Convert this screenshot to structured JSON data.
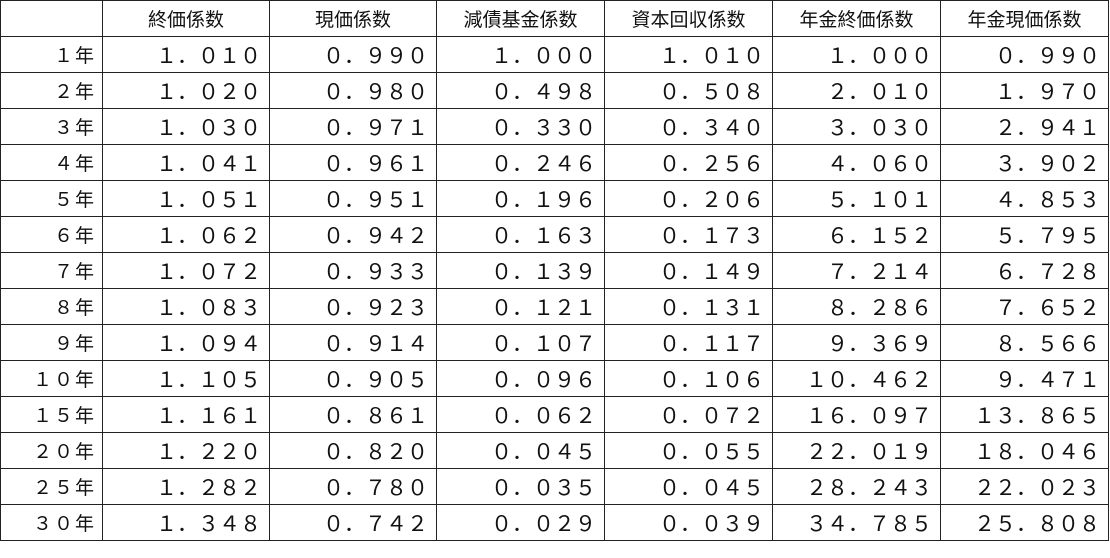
{
  "table": {
    "headers": [
      "",
      "終価係数",
      "現価係数",
      "減債基金係数",
      "資本回収係数",
      "年金終価係数",
      "年金現価係数"
    ],
    "rows": [
      {
        "label": "１年",
        "values": [
          "１．０１０",
          "０．９９０",
          "１．０００",
          "１．０１０",
          "１．０００",
          "０．９９０"
        ]
      },
      {
        "label": "２年",
        "values": [
          "１．０２０",
          "０．９８０",
          "０．４９８",
          "０．５０８",
          "２．０１０",
          "１．９７０"
        ]
      },
      {
        "label": "３年",
        "values": [
          "１．０３０",
          "０．９７１",
          "０．３３０",
          "０．３４０",
          "３．０３０",
          "２．９４１"
        ]
      },
      {
        "label": "４年",
        "values": [
          "１．０４１",
          "０．９６１",
          "０．２４６",
          "０．２５６",
          "４．０６０",
          "３．９０２"
        ]
      },
      {
        "label": "５年",
        "values": [
          "１．０５１",
          "０．９５１",
          "０．１９６",
          "０．２０６",
          "５．１０１",
          "４．８５３"
        ]
      },
      {
        "label": "６年",
        "values": [
          "１．０６２",
          "０．９４２",
          "０．１６３",
          "０．１７３",
          "６．１５２",
          "５．７９５"
        ]
      },
      {
        "label": "７年",
        "values": [
          "１．０７２",
          "０．９３３",
          "０．１３９",
          "０．１４９",
          "７．２１４",
          "６．７２８"
        ]
      },
      {
        "label": "８年",
        "values": [
          "１．０８３",
          "０．９２３",
          "０．１２１",
          "０．１３１",
          "８．２８６",
          "７．６５２"
        ]
      },
      {
        "label": "９年",
        "values": [
          "１．０９４",
          "０．９１４",
          "０．１０７",
          "０．１１７",
          "９．３６９",
          "８．５６６"
        ]
      },
      {
        "label": "１０年",
        "values": [
          "１．１０５",
          "０．９０５",
          "０．０９６",
          "０．１０６",
          "１０．４６２",
          "９．４７１"
        ]
      },
      {
        "label": "１５年",
        "values": [
          "１．１６１",
          "０．８６１",
          "０．０６２",
          "０．０７２",
          "１６．０９７",
          "１３．８６５"
        ]
      },
      {
        "label": "２０年",
        "values": [
          "１．２２０",
          "０．８２０",
          "０．０４５",
          "０．０５５",
          "２２．０１９",
          "１８．０４６"
        ]
      },
      {
        "label": "２５年",
        "values": [
          "１．２８２",
          "０．７８０",
          "０．０３５",
          "０．０４５",
          "２８．２４３",
          "２２．０２３"
        ]
      },
      {
        "label": "３０年",
        "values": [
          "１．３４８",
          "０．７４２",
          "０．０２９",
          "０．０３９",
          "３４．７８５",
          "２５．８０８"
        ]
      }
    ]
  }
}
